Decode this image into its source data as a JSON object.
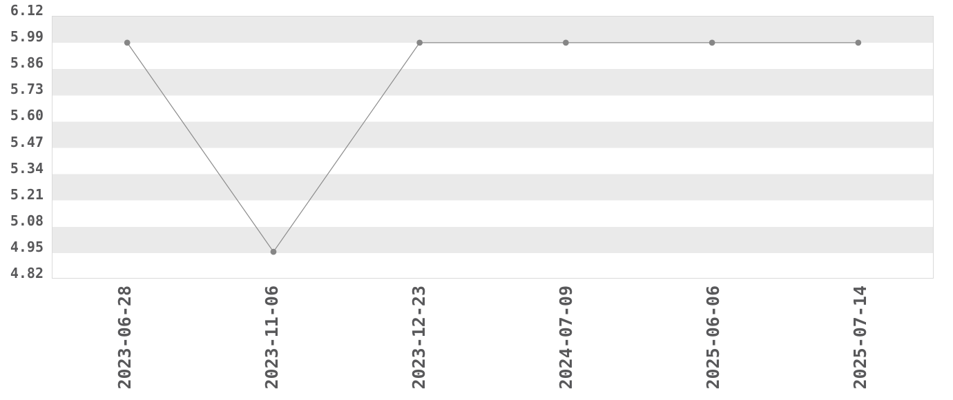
{
  "chart_data": {
    "type": "line",
    "title": "",
    "xlabel": "",
    "ylabel": "",
    "legend": "none",
    "grid": "alternating horizontal bands, no vertical gridlines",
    "x_categories": [
      "2023-06-28",
      "2023-11-06",
      "2023-12-23",
      "2024-07-09",
      "2025-06-06",
      "2025-07-14"
    ],
    "series": [
      {
        "name": "value",
        "values": [
          5.99,
          4.95,
          5.99,
          5.99,
          5.99,
          5.99
        ]
      }
    ],
    "y_ticks": [
      "6.12",
      "5.99",
      "5.86",
      "5.73",
      "5.60",
      "5.47",
      "5.34",
      "5.21",
      "5.08",
      "4.95",
      "4.82"
    ],
    "ylim": [
      4.82,
      6.12
    ],
    "colors": {
      "line": "#8b8b8b",
      "marker": "#868686",
      "band": "#eaeaea",
      "band_alt": "#ffffff",
      "plot_border": "#dadada",
      "tick_text": "#58585a",
      "background": "#ffffff"
    }
  }
}
